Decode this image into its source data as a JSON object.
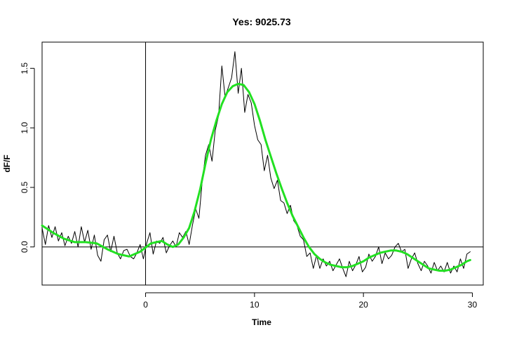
{
  "chart_data": {
    "type": "line",
    "title": "Yes: 9025.73",
    "xlabel": "Time",
    "ylabel": "dF/F",
    "xlim": [
      -9.5,
      31
    ],
    "ylim": [
      -0.32,
      1.72
    ],
    "x_ticks": [
      {
        "value": 0,
        "label": "0"
      },
      {
        "value": 10,
        "label": "10"
      },
      {
        "value": 20,
        "label": "20"
      },
      {
        "value": 30,
        "label": "30"
      }
    ],
    "y_ticks": [
      {
        "value": 0,
        "label": "0.0"
      },
      {
        "value": 0.5,
        "label": "0.5"
      },
      {
        "value": 1.0,
        "label": "1.0"
      },
      {
        "value": 1.5,
        "label": "1.5"
      }
    ],
    "reference_lines": {
      "vertical_x": 0,
      "horizontal_y": 0
    },
    "grid": false,
    "legend": "none",
    "series": [
      {
        "style": "raw",
        "color": "#000000",
        "x": [
          -9.5,
          -9.2,
          -8.9,
          -8.6,
          -8.3,
          -8.0,
          -7.7,
          -7.4,
          -7.1,
          -6.8,
          -6.5,
          -6.2,
          -5.9,
          -5.6,
          -5.3,
          -5.0,
          -4.7,
          -4.4,
          -4.1,
          -3.8,
          -3.5,
          -3.2,
          -2.9,
          -2.6,
          -2.3,
          -2.0,
          -1.7,
          -1.4,
          -1.1,
          -0.8,
          -0.5,
          -0.2,
          0.1,
          0.4,
          0.7,
          1.0,
          1.3,
          1.6,
          1.9,
          2.2,
          2.5,
          2.8,
          3.1,
          3.4,
          3.7,
          4.0,
          4.3,
          4.6,
          4.9,
          5.2,
          5.5,
          5.8,
          6.1,
          6.4,
          6.7,
          7.0,
          7.3,
          7.6,
          7.9,
          8.2,
          8.5,
          8.8,
          9.1,
          9.4,
          9.7,
          10.0,
          10.3,
          10.6,
          10.9,
          11.2,
          11.5,
          11.8,
          12.1,
          12.4,
          12.7,
          13.0,
          13.3,
          13.6,
          13.9,
          14.2,
          14.5,
          14.8,
          15.1,
          15.4,
          15.7,
          16.0,
          16.3,
          16.6,
          16.9,
          17.2,
          17.5,
          17.8,
          18.1,
          18.4,
          18.7,
          19.0,
          19.3,
          19.6,
          19.9,
          20.2,
          20.5,
          20.8,
          21.1,
          21.4,
          21.7,
          22.0,
          22.3,
          22.6,
          22.9,
          23.2,
          23.5,
          23.8,
          24.1,
          24.4,
          24.7,
          25.0,
          25.3,
          25.6,
          25.9,
          26.2,
          26.5,
          26.8,
          27.1,
          27.4,
          27.7,
          28.0,
          28.3,
          28.6,
          28.9,
          29.2,
          29.5,
          29.8
        ],
        "y": [
          0.16,
          0.02,
          0.18,
          0.08,
          0.17,
          0.05,
          0.12,
          0.01,
          0.09,
          0.03,
          0.13,
          0.0,
          0.17,
          0.04,
          0.14,
          -0.02,
          0.1,
          -0.07,
          -0.12,
          0.06,
          0.1,
          -0.04,
          0.09,
          -0.05,
          -0.1,
          -0.03,
          -0.02,
          -0.08,
          -0.1,
          -0.05,
          0.02,
          -0.1,
          0.03,
          0.12,
          -0.06,
          0.05,
          0.03,
          0.08,
          -0.05,
          0.01,
          0.05,
          0.0,
          0.12,
          0.08,
          0.13,
          0.02,
          0.18,
          0.32,
          0.24,
          0.55,
          0.77,
          0.86,
          0.72,
          0.98,
          1.1,
          1.52,
          1.26,
          1.34,
          1.42,
          1.64,
          1.29,
          1.5,
          1.13,
          1.28,
          1.21,
          1.02,
          0.9,
          0.86,
          0.64,
          0.77,
          0.58,
          0.49,
          0.56,
          0.39,
          0.37,
          0.28,
          0.35,
          0.22,
          0.18,
          0.09,
          0.06,
          -0.08,
          -0.05,
          -0.18,
          -0.07,
          -0.18,
          -0.1,
          -0.16,
          -0.12,
          -0.2,
          -0.15,
          -0.1,
          -0.18,
          -0.25,
          -0.12,
          -0.2,
          -0.15,
          -0.08,
          -0.21,
          -0.17,
          -0.06,
          -0.12,
          -0.08,
          0.0,
          -0.14,
          -0.05,
          -0.1,
          -0.07,
          0.0,
          0.03,
          -0.04,
          -0.02,
          -0.18,
          -0.1,
          -0.05,
          -0.14,
          -0.2,
          -0.12,
          -0.16,
          -0.22,
          -0.13,
          -0.2,
          -0.16,
          -0.21,
          -0.13,
          -0.22,
          -0.16,
          -0.21,
          -0.1,
          -0.18,
          -0.06,
          -0.04
        ]
      },
      {
        "style": "smooth",
        "color": "#22e022",
        "x": [
          -9.5,
          -8.5,
          -7.5,
          -6.5,
          -5.5,
          -4.5,
          -3.5,
          -2.5,
          -1.5,
          -0.5,
          0.5,
          1.0,
          1.5,
          2.0,
          2.5,
          3.0,
          3.5,
          4.0,
          4.5,
          5.0,
          5.5,
          6.0,
          6.5,
          7.0,
          7.5,
          8.0,
          8.5,
          9.0,
          9.5,
          10.0,
          10.5,
          11.0,
          11.5,
          12.0,
          12.5,
          13.0,
          13.5,
          14.0,
          14.5,
          15.0,
          15.5,
          16.0,
          16.5,
          17.0,
          17.5,
          18.0,
          18.5,
          19.0,
          19.5,
          20.0,
          20.5,
          21.0,
          21.5,
          22.0,
          22.5,
          23.0,
          23.5,
          24.0,
          24.5,
          25.0,
          25.5,
          26.0,
          26.5,
          27.0,
          27.5,
          28.0,
          28.5,
          29.0,
          29.5,
          29.8
        ],
        "y": [
          0.18,
          0.12,
          0.07,
          0.04,
          0.04,
          0.03,
          -0.02,
          -0.06,
          -0.08,
          -0.04,
          0.03,
          0.04,
          0.05,
          0.02,
          0.0,
          0.02,
          0.08,
          0.16,
          0.3,
          0.48,
          0.7,
          0.9,
          1.06,
          1.2,
          1.3,
          1.35,
          1.37,
          1.36,
          1.3,
          1.2,
          1.06,
          0.9,
          0.76,
          0.62,
          0.49,
          0.37,
          0.26,
          0.17,
          0.08,
          0.0,
          -0.06,
          -0.1,
          -0.13,
          -0.15,
          -0.16,
          -0.17,
          -0.17,
          -0.16,
          -0.14,
          -0.12,
          -0.09,
          -0.07,
          -0.05,
          -0.04,
          -0.03,
          -0.03,
          -0.04,
          -0.06,
          -0.09,
          -0.12,
          -0.15,
          -0.18,
          -0.19,
          -0.2,
          -0.2,
          -0.19,
          -0.17,
          -0.15,
          -0.12,
          -0.11
        ]
      }
    ]
  }
}
